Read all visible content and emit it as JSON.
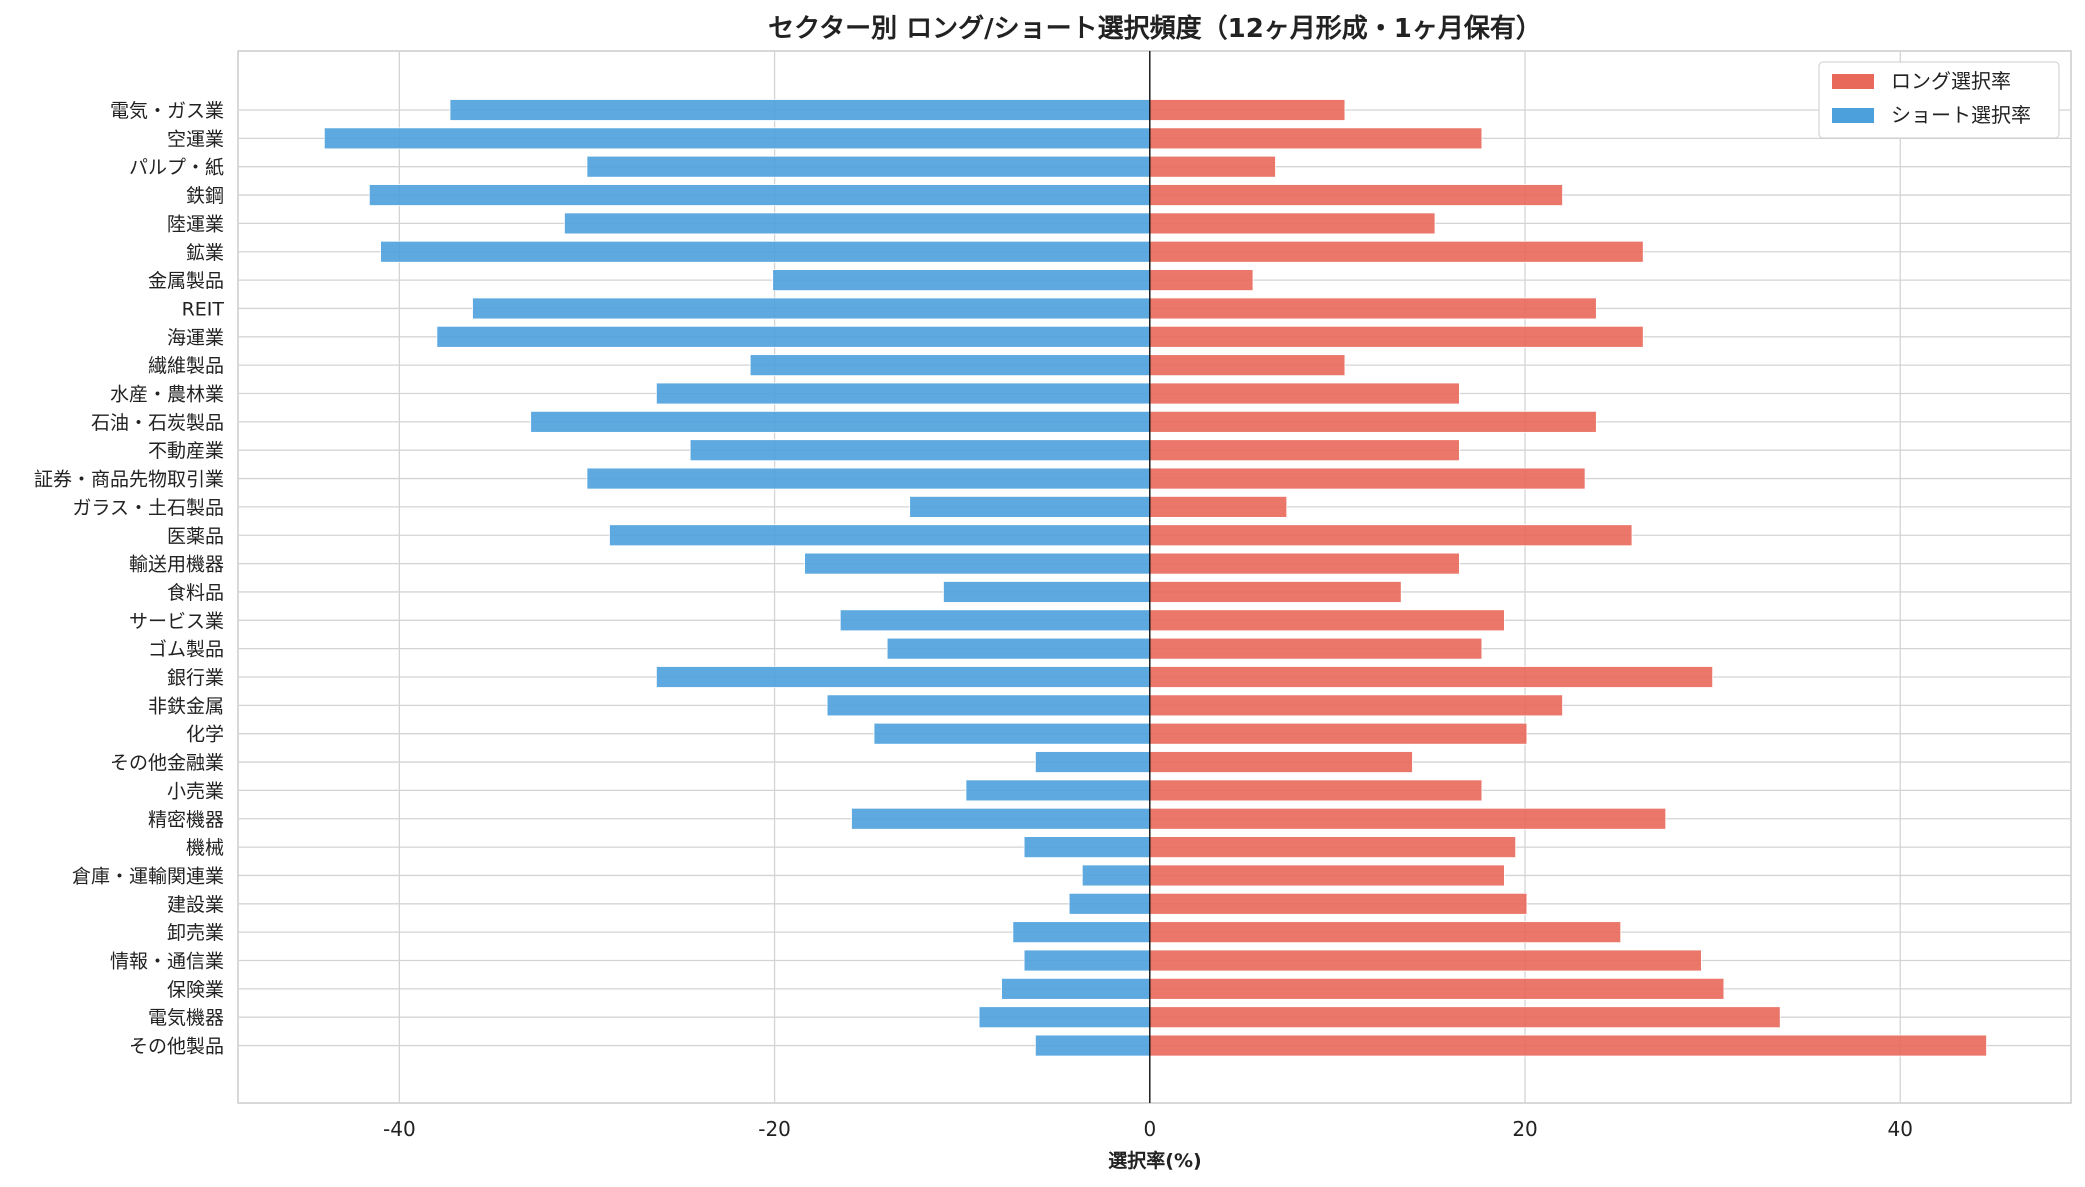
{
  "chart_data": {
    "type": "bar",
    "orientation": "horizontal",
    "title": "セクター別 ロング/ショート選択頻度（12ヶ月形成・1ヶ月保有）",
    "xlabel": "選択率(%)",
    "ylabel": "",
    "xlim": [
      -48.6,
      49.1
    ],
    "xticks": [
      -40,
      -20,
      0,
      20,
      40
    ],
    "grid": true,
    "legend_position": "top-right",
    "categories": [
      "電気・ガス業",
      "空運業",
      "パルプ・紙",
      "鉄鋼",
      "陸運業",
      "鉱業",
      "金属製品",
      "REIT",
      "海運業",
      "繊維製品",
      "水産・農林業",
      "石油・石炭製品",
      "不動産業",
      "証券・商品先物取引業",
      "ガラス・土石製品",
      "医薬品",
      "輸送用機器",
      "食料品",
      "サービス業",
      "ゴム製品",
      "銀行業",
      "非鉄金属",
      "化学",
      "その他金融業",
      "小売業",
      "精密機器",
      "機械",
      "倉庫・運輸関連業",
      "建設業",
      "卸売業",
      "情報・通信業",
      "保険業",
      "電気機器",
      "その他製品"
    ],
    "series": [
      {
        "name": "ロング選択率",
        "color": "#e8685a",
        "values": [
          10.4,
          17.7,
          6.7,
          22.0,
          15.2,
          26.3,
          5.5,
          23.8,
          26.3,
          10.4,
          16.5,
          23.8,
          16.5,
          23.2,
          7.3,
          25.7,
          16.5,
          13.4,
          18.9,
          17.7,
          30.0,
          22.0,
          20.1,
          14.0,
          17.7,
          27.5,
          19.5,
          18.9,
          20.1,
          25.1,
          29.4,
          30.6,
          33.6,
          44.6
        ]
      },
      {
        "name": "ショート選択率",
        "color": "#4ca1dd",
        "values": [
          -37.3,
          -44.0,
          -30.0,
          -41.6,
          -31.2,
          -41.0,
          -20.1,
          -36.1,
          -38.0,
          -21.3,
          -26.3,
          -33.0,
          -24.5,
          -30.0,
          -12.8,
          -28.8,
          -18.4,
          -11.0,
          -16.5,
          -14.0,
          -26.3,
          -17.2,
          -14.7,
          -6.1,
          -9.8,
          -15.9,
          -6.7,
          -3.6,
          -4.3,
          -7.3,
          -6.7,
          -7.9,
          -9.1,
          -6.1
        ]
      }
    ]
  }
}
